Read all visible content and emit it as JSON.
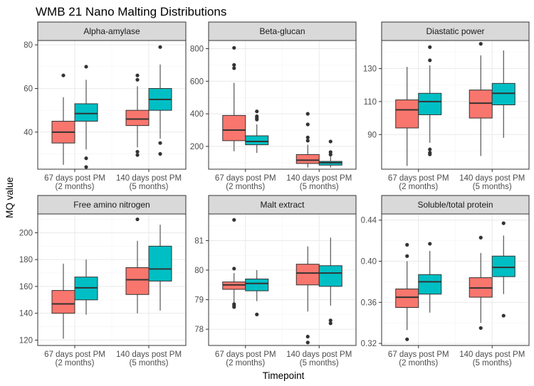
{
  "title": "WMB 21 Nano Malting Distributions",
  "xlabel": "Timepoint",
  "ylabel": "MQ value",
  "x_tick_labels": [
    [
      "67 days post PM",
      "(2 months)"
    ],
    [
      "140 days post PM",
      "(5 months)"
    ]
  ],
  "colors": {
    "group_a": "#F8766D",
    "group_b": "#00BFC4",
    "strip": "#D9D9D9",
    "panel_border": "#333333",
    "grid_major": "#EBEBEB",
    "grid_minor": "#F5F5F5"
  },
  "chart_data": [
    {
      "type": "box",
      "panel": "Alpha-amylase",
      "ylim": [
        23,
        82
      ],
      "yticks": [
        40,
        60,
        80
      ],
      "ytick_labels": [
        "40",
        "60",
        "80"
      ],
      "boxes": [
        {
          "x": 0,
          "offset": -1,
          "fill": "group_a",
          "whisker_low": 25,
          "q1": 35,
          "median": 40,
          "q3": 45,
          "whisker_high": 56,
          "outliers": [
            66
          ]
        },
        {
          "x": 0,
          "offset": 1,
          "fill": "group_b",
          "whisker_low": 32,
          "q1": 45,
          "median": 48.5,
          "q3": 53,
          "whisker_high": 64,
          "outliers": [
            70,
            28,
            24
          ]
        },
        {
          "x": 1,
          "offset": -1,
          "fill": "group_a",
          "whisker_low": 33,
          "q1": 43,
          "median": 46,
          "q3": 50,
          "whisker_high": 61,
          "outliers": [
            66,
            64,
            31,
            29.5
          ]
        },
        {
          "x": 1,
          "offset": 1,
          "fill": "group_b",
          "whisker_low": 37,
          "q1": 50,
          "median": 55,
          "q3": 60,
          "whisker_high": 71,
          "outliers": [
            79,
            35,
            30
          ]
        }
      ]
    },
    {
      "type": "box",
      "panel": "Beta-glucan",
      "ylim": [
        60,
        850
      ],
      "yticks": [
        200,
        400,
        600,
        800
      ],
      "ytick_labels": [
        "200",
        "400",
        "600",
        "800"
      ],
      "boxes": [
        {
          "x": 0,
          "offset": -1,
          "fill": "group_a",
          "whisker_low": 170,
          "q1": 235,
          "median": 300,
          "q3": 390,
          "whisker_high": 590,
          "outliers": [
            805,
            700,
            680
          ]
        },
        {
          "x": 0,
          "offset": 1,
          "fill": "group_b",
          "whisker_low": 160,
          "q1": 210,
          "median": 230,
          "q3": 265,
          "whisker_high": 335,
          "outliers": [
            415,
            385,
            375,
            365
          ]
        },
        {
          "x": 1,
          "offset": -1,
          "fill": "group_a",
          "whisker_low": 70,
          "q1": 95,
          "median": 115,
          "q3": 150,
          "whisker_high": 210,
          "outliers": [
            400,
            335,
            255,
            235
          ]
        },
        {
          "x": 1,
          "offset": 1,
          "fill": "group_b",
          "whisker_low": 70,
          "q1": 85,
          "median": 100,
          "q3": 108,
          "whisker_high": 140,
          "outliers": [
            230,
            165,
            150
          ]
        }
      ]
    },
    {
      "type": "box",
      "panel": "Diastatic power",
      "ylim": [
        69,
        147
      ],
      "yticks": [
        90,
        110,
        130
      ],
      "ytick_labels": [
        "90",
        "110",
        "130"
      ],
      "boxes": [
        {
          "x": 0,
          "offset": -1,
          "fill": "group_a",
          "whisker_low": 71,
          "q1": 94,
          "median": 105,
          "q3": 111,
          "whisker_high": 131,
          "outliers": []
        },
        {
          "x": 0,
          "offset": 1,
          "fill": "group_b",
          "whisker_low": 85,
          "q1": 102,
          "median": 110,
          "q3": 115,
          "whisker_high": 132,
          "outliers": [
            143,
            135,
            81,
            79,
            78
          ]
        },
        {
          "x": 1,
          "offset": -1,
          "fill": "group_a",
          "whisker_low": 77,
          "q1": 100,
          "median": 109,
          "q3": 117,
          "whisker_high": 138,
          "outliers": [
            145
          ]
        },
        {
          "x": 1,
          "offset": 1,
          "fill": "group_b",
          "whisker_low": 88,
          "q1": 108,
          "median": 115,
          "q3": 121,
          "whisker_high": 141,
          "outliers": []
        }
      ]
    },
    {
      "type": "box",
      "panel": "Free amino nitrogen",
      "ylim": [
        116,
        214
      ],
      "yticks": [
        120,
        140,
        160,
        180,
        200
      ],
      "ytick_labels": [
        "120",
        "140",
        "160",
        "180",
        "200"
      ],
      "boxes": [
        {
          "x": 0,
          "offset": -1,
          "fill": "group_a",
          "whisker_low": 121,
          "q1": 140,
          "median": 147,
          "q3": 157,
          "whisker_high": 177,
          "outliers": []
        },
        {
          "x": 0,
          "offset": 1,
          "fill": "group_b",
          "whisker_low": 139,
          "q1": 150,
          "median": 159,
          "q3": 167,
          "whisker_high": 180,
          "outliers": []
        },
        {
          "x": 1,
          "offset": -1,
          "fill": "group_a",
          "whisker_low": 140,
          "q1": 154,
          "median": 165,
          "q3": 174,
          "whisker_high": 194,
          "outliers": [
            210
          ]
        },
        {
          "x": 1,
          "offset": 1,
          "fill": "group_b",
          "whisker_low": 142,
          "q1": 164,
          "median": 173,
          "q3": 190,
          "whisker_high": 206,
          "outliers": []
        }
      ]
    },
    {
      "type": "box",
      "panel": "Malt extract",
      "ylim": [
        77.45,
        81.9
      ],
      "yticks": [
        78,
        79,
        80,
        81
      ],
      "ytick_labels": [
        "78",
        "79",
        "80",
        "81"
      ],
      "boxes": [
        {
          "x": 0,
          "offset": -1,
          "fill": "group_a",
          "whisker_low": 78.9,
          "q1": 79.35,
          "median": 79.5,
          "q3": 79.6,
          "whisker_high": 79.9,
          "outliers": [
            81.7,
            80.05,
            78.85,
            78.8,
            78.75
          ]
        },
        {
          "x": 0,
          "offset": 1,
          "fill": "group_b",
          "whisker_low": 78.95,
          "q1": 79.3,
          "median": 79.55,
          "q3": 79.7,
          "whisker_high": 80.0,
          "outliers": [
            78.5
          ]
        },
        {
          "x": 1,
          "offset": -1,
          "fill": "group_a",
          "whisker_low": 78.6,
          "q1": 79.5,
          "median": 79.9,
          "q3": 80.2,
          "whisker_high": 80.8,
          "outliers": [
            77.75,
            77.55
          ]
        },
        {
          "x": 1,
          "offset": 1,
          "fill": "group_b",
          "whisker_low": 78.8,
          "q1": 79.45,
          "median": 79.9,
          "q3": 80.15,
          "whisker_high": 81.1,
          "outliers": [
            78.3,
            78.2
          ]
        }
      ]
    },
    {
      "type": "box",
      "panel": "Soluble/total protein",
      "ylim": [
        0.318,
        0.446
      ],
      "yticks": [
        0.32,
        0.36,
        0.4,
        0.44
      ],
      "ytick_labels": [
        "0.32",
        "0.36",
        "0.40",
        "0.44"
      ],
      "boxes": [
        {
          "x": 0,
          "offset": -1,
          "fill": "group_a",
          "whisker_low": 0.333,
          "q1": 0.355,
          "median": 0.365,
          "q3": 0.373,
          "whisker_high": 0.4,
          "outliers": [
            0.416,
            0.405,
            0.324
          ]
        },
        {
          "x": 0,
          "offset": 1,
          "fill": "group_b",
          "whisker_low": 0.35,
          "q1": 0.368,
          "median": 0.38,
          "q3": 0.387,
          "whisker_high": 0.41,
          "outliers": [
            0.417
          ]
        },
        {
          "x": 1,
          "offset": -1,
          "fill": "group_a",
          "whisker_low": 0.34,
          "q1": 0.365,
          "median": 0.374,
          "q3": 0.384,
          "whisker_high": 0.408,
          "outliers": [
            0.423,
            0.335
          ]
        },
        {
          "x": 1,
          "offset": 1,
          "fill": "group_b",
          "whisker_low": 0.368,
          "q1": 0.385,
          "median": 0.394,
          "q3": 0.405,
          "whisker_high": 0.425,
          "outliers": [
            0.437,
            0.347
          ]
        }
      ]
    }
  ]
}
